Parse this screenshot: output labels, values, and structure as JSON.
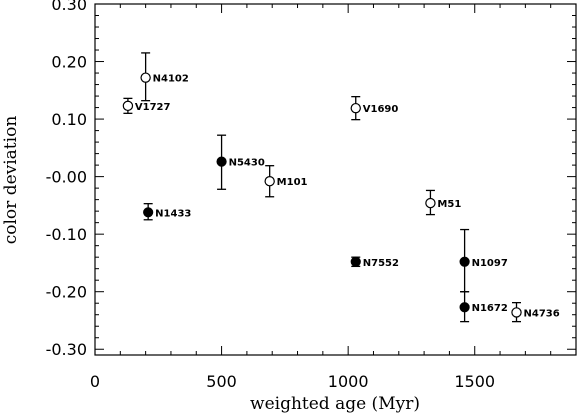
{
  "chart_data": {
    "type": "scatter",
    "xlabel": "weighted age (Myr)",
    "ylabel": "color deviation",
    "xlim": [
      0,
      1900
    ],
    "ylim": [
      -0.31,
      0.3
    ],
    "x_ticks": [
      0,
      500,
      1000,
      1500
    ],
    "x_tick_labels": [
      "0",
      "500",
      "1000",
      "1500"
    ],
    "y_ticks": [
      0.3,
      0.2,
      0.1,
      0.0,
      -0.1,
      -0.2,
      -0.3
    ],
    "y_tick_labels": [
      "0.30",
      "0.20",
      "0.10",
      "-0.00",
      "-0.10",
      "-0.20",
      "-0.30"
    ],
    "grid": false,
    "legend": "none",
    "points": [
      {
        "label": "N4102",
        "x": 200,
        "y": 0.172,
        "err_low": 0.04,
        "err_high": 0.043,
        "marker": "open"
      },
      {
        "label": "V1727",
        "x": 130,
        "y": 0.123,
        "err_low": 0.013,
        "err_high": 0.013,
        "marker": "open"
      },
      {
        "label": "V1690",
        "x": 1030,
        "y": 0.119,
        "err_low": 0.02,
        "err_high": 0.02,
        "marker": "open"
      },
      {
        "label": "N5430",
        "x": 500,
        "y": 0.026,
        "err_low": 0.048,
        "err_high": 0.046,
        "marker": "filled"
      },
      {
        "label": "M101",
        "x": 690,
        "y": -0.008,
        "err_low": 0.027,
        "err_high": 0.027,
        "marker": "open"
      },
      {
        "label": "N1433",
        "x": 210,
        "y": -0.062,
        "err_low": 0.013,
        "err_high": 0.015,
        "marker": "filled"
      },
      {
        "label": "M51",
        "x": 1325,
        "y": -0.046,
        "err_low": 0.02,
        "err_high": 0.022,
        "marker": "open"
      },
      {
        "label": "N7552",
        "x": 1030,
        "y": -0.148,
        "err_low": 0.008,
        "err_high": 0.008,
        "marker": "filled"
      },
      {
        "label": "N1097",
        "x": 1460,
        "y": -0.148,
        "err_low": 0.052,
        "err_high": 0.056,
        "marker": "filled"
      },
      {
        "label": "N1672",
        "x": 1460,
        "y": -0.227,
        "err_low": 0.025,
        "err_high": 0.027,
        "marker": "filled"
      },
      {
        "label": "N4736",
        "x": 1665,
        "y": -0.236,
        "err_low": 0.016,
        "err_high": 0.017,
        "marker": "open"
      }
    ]
  }
}
